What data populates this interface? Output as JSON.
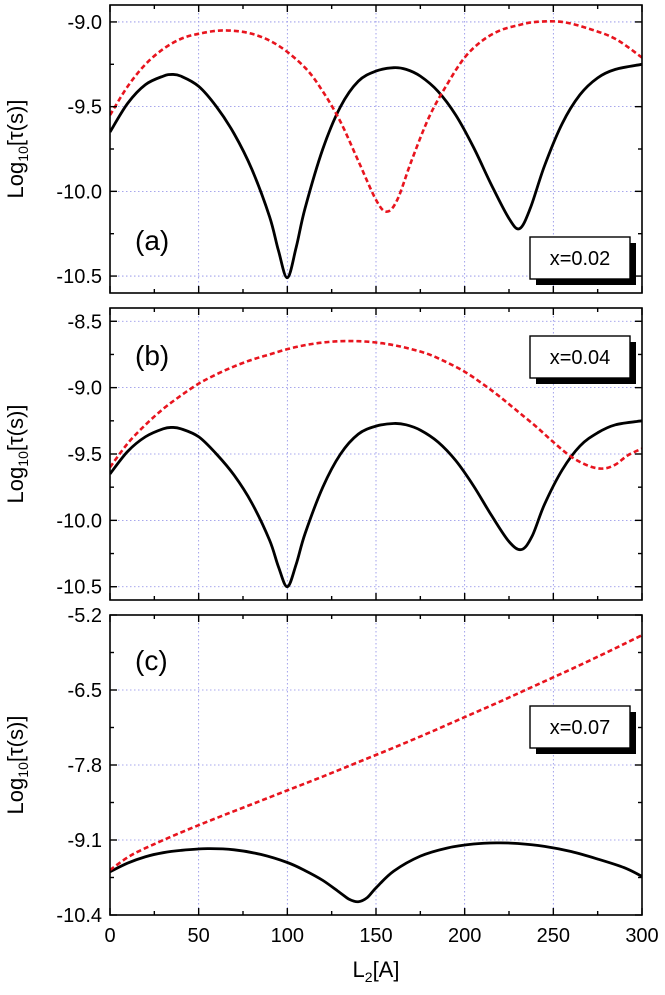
{
  "chart_data": [
    {
      "type": "line",
      "panel_label": "(a)",
      "legend_box": "x=0.02",
      "ylabel_main": "Log",
      "ylabel_sub": "10",
      "ylabel_rest": "[τ(s)]",
      "xlim": [
        0,
        300
      ],
      "ylim": [
        -10.6,
        -8.9
      ],
      "yticks": [
        -9.0,
        -9.5,
        -10.0,
        -10.5
      ],
      "ytick_labels": [
        "-9.0",
        "-9.5",
        "-10.0",
        "-10.5"
      ],
      "xticks": [
        0,
        50,
        100,
        150,
        200,
        250,
        300
      ],
      "grid": true,
      "series": [
        {
          "style": "solid",
          "color": "#000000",
          "x": [
            0,
            10,
            20,
            30,
            35,
            40,
            50,
            60,
            70,
            80,
            90,
            95,
            100,
            105,
            110,
            120,
            130,
            140,
            150,
            160,
            167,
            175,
            185,
            195,
            205,
            215,
            225,
            231,
            237,
            245,
            255,
            265,
            275,
            285,
            300
          ],
          "y": [
            -9.65,
            -9.48,
            -9.37,
            -9.32,
            -9.31,
            -9.32,
            -9.38,
            -9.5,
            -9.66,
            -9.87,
            -10.15,
            -10.35,
            -10.51,
            -10.33,
            -10.1,
            -9.75,
            -9.5,
            -9.35,
            -9.29,
            -9.27,
            -9.28,
            -9.32,
            -9.41,
            -9.55,
            -9.74,
            -9.96,
            -10.16,
            -10.22,
            -10.1,
            -9.85,
            -9.6,
            -9.43,
            -9.33,
            -9.28,
            -9.25
          ]
        },
        {
          "style": "dashed",
          "color": "#e8141e",
          "x": [
            0,
            10,
            20,
            30,
            40,
            50,
            64,
            80,
            95,
            110,
            120,
            130,
            140,
            150,
            156,
            162,
            170,
            180,
            190,
            200,
            210,
            220,
            230,
            240,
            255,
            270,
            285,
            300
          ],
          "y": [
            -9.55,
            -9.38,
            -9.25,
            -9.16,
            -9.1,
            -9.07,
            -9.05,
            -9.07,
            -9.14,
            -9.27,
            -9.41,
            -9.59,
            -9.82,
            -10.05,
            -10.12,
            -10.05,
            -9.82,
            -9.56,
            -9.37,
            -9.21,
            -9.11,
            -9.05,
            -9.02,
            -9.0,
            -9.0,
            -9.04,
            -9.1,
            -9.21
          ]
        }
      ]
    },
    {
      "type": "line",
      "panel_label": "(b)",
      "legend_box": "x=0.04",
      "ylabel_main": "Log",
      "ylabel_sub": "10",
      "ylabel_rest": "[τ(s)]",
      "xlim": [
        0,
        300
      ],
      "ylim": [
        -10.6,
        -8.4
      ],
      "yticks": [
        -8.5,
        -9.0,
        -9.5,
        -10.0,
        -10.5
      ],
      "ytick_labels": [
        "-8.5",
        "-9.0",
        "-9.5",
        "-10.0",
        "-10.5"
      ],
      "xticks": [
        0,
        50,
        100,
        150,
        200,
        250,
        300
      ],
      "grid": true,
      "series": [
        {
          "style": "solid",
          "color": "#000000",
          "x": [
            0,
            10,
            20,
            30,
            35,
            40,
            50,
            60,
            70,
            80,
            90,
            95,
            100,
            105,
            110,
            120,
            130,
            140,
            150,
            160,
            167,
            175,
            185,
            195,
            205,
            215,
            225,
            232,
            238,
            245,
            255,
            265,
            275,
            285,
            300
          ],
          "y": [
            -9.65,
            -9.48,
            -9.37,
            -9.31,
            -9.3,
            -9.31,
            -9.37,
            -9.5,
            -9.66,
            -9.87,
            -10.15,
            -10.35,
            -10.5,
            -10.33,
            -10.1,
            -9.75,
            -9.5,
            -9.35,
            -9.29,
            -9.27,
            -9.28,
            -9.32,
            -9.41,
            -9.55,
            -9.74,
            -9.96,
            -10.16,
            -10.22,
            -10.12,
            -9.88,
            -9.62,
            -9.44,
            -9.34,
            -9.28,
            -9.25
          ]
        },
        {
          "style": "dashed",
          "color": "#e8141e",
          "x": [
            0,
            10,
            20,
            30,
            40,
            50,
            60,
            70,
            80,
            90,
            100,
            110,
            120,
            130,
            140,
            150,
            160,
            170,
            180,
            190,
            200,
            210,
            220,
            230,
            240,
            250,
            260,
            270,
            278,
            285,
            292,
            300
          ],
          "y": [
            -9.6,
            -9.42,
            -9.28,
            -9.16,
            -9.06,
            -8.97,
            -8.9,
            -8.84,
            -8.79,
            -8.75,
            -8.71,
            -8.68,
            -8.66,
            -8.65,
            -8.65,
            -8.66,
            -8.68,
            -8.71,
            -8.75,
            -8.81,
            -8.88,
            -8.97,
            -9.07,
            -9.18,
            -9.29,
            -9.41,
            -9.52,
            -9.59,
            -9.61,
            -9.58,
            -9.51,
            -9.46
          ]
        }
      ]
    },
    {
      "type": "line",
      "panel_label": "(c)",
      "legend_box": "x=0.07",
      "ylabel_main": "Log",
      "ylabel_sub": "10",
      "ylabel_rest": "[τ(s)]",
      "xlim": [
        0,
        300
      ],
      "ylim": [
        -10.4,
        -5.2
      ],
      "yticks": [
        -5.2,
        -6.5,
        -7.8,
        -9.1,
        -10.4
      ],
      "ytick_labels": [
        "-5.2",
        "-6.5",
        "-7.8",
        "-9.1",
        "-10.4"
      ],
      "xticks": [
        0,
        50,
        100,
        150,
        200,
        250,
        300
      ],
      "xtick_labels": [
        "0",
        "50",
        "100",
        "150",
        "200",
        "250",
        "300"
      ],
      "xlabel_main": "L",
      "xlabel_sub": "2",
      "xlabel_rest": "[A]",
      "grid": true,
      "series": [
        {
          "style": "solid",
          "color": "#000000",
          "x": [
            0,
            10,
            20,
            30,
            40,
            55,
            70,
            85,
            100,
            110,
            120,
            130,
            135,
            140,
            145,
            150,
            160,
            175,
            190,
            205,
            218,
            230,
            245,
            260,
            275,
            290,
            300
          ],
          "y": [
            -9.65,
            -9.5,
            -9.39,
            -9.32,
            -9.28,
            -9.25,
            -9.27,
            -9.35,
            -9.49,
            -9.63,
            -9.8,
            -10.02,
            -10.13,
            -10.17,
            -10.1,
            -9.93,
            -9.64,
            -9.38,
            -9.24,
            -9.17,
            -9.15,
            -9.16,
            -9.21,
            -9.3,
            -9.43,
            -9.58,
            -9.73
          ]
        },
        {
          "style": "dashed",
          "color": "#e8141e",
          "x": [
            0,
            10,
            20,
            40,
            60,
            80,
            100,
            120,
            140,
            160,
            180,
            200,
            220,
            240,
            260,
            280,
            300
          ],
          "y": [
            -9.62,
            -9.4,
            -9.24,
            -8.97,
            -8.72,
            -8.48,
            -8.24,
            -8.0,
            -7.75,
            -7.5,
            -7.24,
            -6.97,
            -6.7,
            -6.42,
            -6.14,
            -5.85,
            -5.55
          ]
        }
      ]
    }
  ]
}
